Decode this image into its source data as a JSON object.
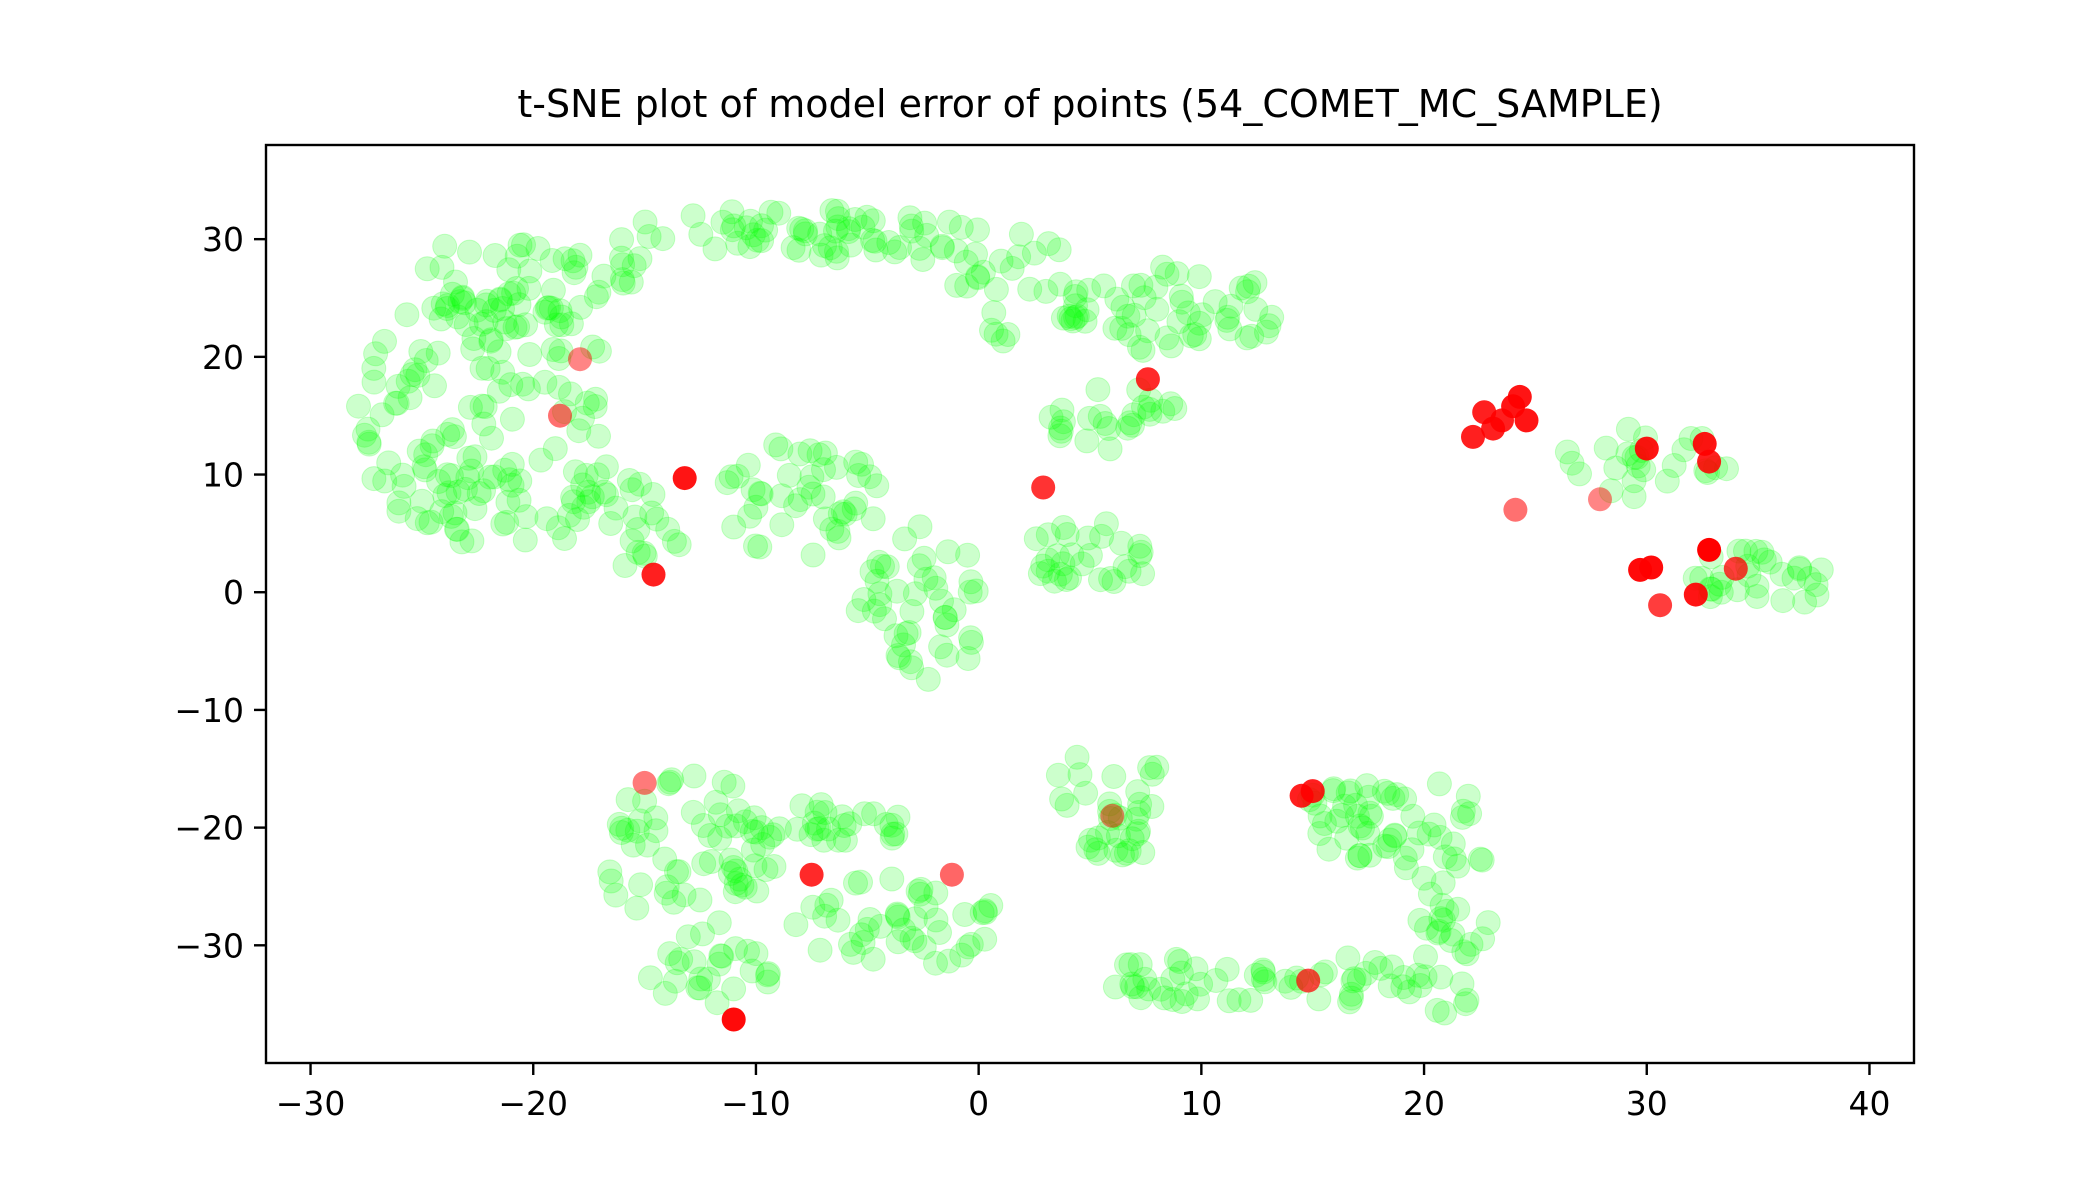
{
  "chart_data": {
    "type": "scatter",
    "title": "t-SNE plot of model error of points (54_COMET_MC_SAMPLE)",
    "xlabel": "",
    "ylabel": "",
    "xlim": [
      -32,
      42
    ],
    "ylim": [
      -40,
      38
    ],
    "xticks": [
      -30,
      -20,
      -10,
      0,
      10,
      20,
      30,
      40
    ],
    "yticks": [
      -30,
      -20,
      -10,
      0,
      10,
      20,
      30
    ],
    "xtick_labels": [
      "−30",
      "−20",
      "−10",
      "0",
      "10",
      "20",
      "30",
      "40"
    ],
    "ytick_labels": [
      "−30",
      "−20",
      "−10",
      "0",
      "10",
      "20",
      "30"
    ],
    "grid": false,
    "legend": "none",
    "colors": {
      "low_error": "#00ff00",
      "high_error": "#ff0000"
    },
    "low_error_clusters": [
      {
        "cx": -22,
        "cy": 15,
        "rx": 6,
        "ry": 11,
        "n": 140
      },
      {
        "cx": -20,
        "cy": 27,
        "rx": 5,
        "ry": 5,
        "n": 50
      },
      {
        "cx": -16,
        "cy": 6,
        "rx": 3,
        "ry": 4,
        "n": 30
      },
      {
        "cx": -10,
        "cy": 31,
        "rx": 6,
        "ry": 2,
        "n": 30
      },
      {
        "cx": -4,
        "cy": 30,
        "rx": 5,
        "ry": 2,
        "n": 35
      },
      {
        "cx": 2,
        "cy": 26,
        "rx": 3,
        "ry": 5,
        "n": 30
      },
      {
        "cx": 9,
        "cy": 24,
        "rx": 5,
        "ry": 4,
        "n": 50
      },
      {
        "cx": 6,
        "cy": 15,
        "rx": 3,
        "ry": 3,
        "n": 25
      },
      {
        "cx": -8,
        "cy": 8,
        "rx": 4,
        "ry": 5,
        "n": 45
      },
      {
        "cx": -3,
        "cy": 1,
        "rx": 3,
        "ry": 5,
        "n": 30
      },
      {
        "cx": -2,
        "cy": -5,
        "rx": 2,
        "ry": 3,
        "n": 15
      },
      {
        "cx": 5,
        "cy": 3,
        "rx": 3,
        "ry": 3,
        "n": 30
      },
      {
        "cx": -13,
        "cy": -22,
        "rx": 4,
        "ry": 7,
        "n": 60
      },
      {
        "cx": -7,
        "cy": -20,
        "rx": 4,
        "ry": 2,
        "n": 30
      },
      {
        "cx": -4,
        "cy": -28,
        "rx": 5,
        "ry": 4,
        "n": 45
      },
      {
        "cx": -12,
        "cy": -32,
        "rx": 3,
        "ry": 3,
        "n": 25
      },
      {
        "cx": 6,
        "cy": -18,
        "rx": 3,
        "ry": 5,
        "n": 35
      },
      {
        "cx": 10,
        "cy": -33,
        "rx": 5,
        "ry": 2,
        "n": 35
      },
      {
        "cx": 17,
        "cy": -20,
        "rx": 3,
        "ry": 4,
        "n": 40
      },
      {
        "cx": 21,
        "cy": -26,
        "rx": 2,
        "ry": 10,
        "n": 45
      },
      {
        "cx": 17,
        "cy": -33,
        "rx": 3,
        "ry": 2,
        "n": 20
      },
      {
        "cx": 30,
        "cy": 11,
        "rx": 4,
        "ry": 3,
        "n": 25
      },
      {
        "cx": 35,
        "cy": 1,
        "rx": 3,
        "ry": 3,
        "n": 30
      }
    ],
    "high_error_points": [
      {
        "x": -18.8,
        "y": 15,
        "err": 0.45
      },
      {
        "x": -17.9,
        "y": 19.8,
        "err": 0.35
      },
      {
        "x": -13.2,
        "y": 9.7,
        "err": 0.9
      },
      {
        "x": -14.6,
        "y": 1.5,
        "err": 0.85
      },
      {
        "x": 2.9,
        "y": 8.9,
        "err": 0.75
      },
      {
        "x": 7.6,
        "y": 18.1,
        "err": 0.8
      },
      {
        "x": 24.1,
        "y": 7.0,
        "err": 0.45
      },
      {
        "x": 22.2,
        "y": 13.2,
        "err": 0.85
      },
      {
        "x": 22.7,
        "y": 15.3,
        "err": 0.85
      },
      {
        "x": 23.1,
        "y": 13.9,
        "err": 0.85
      },
      {
        "x": 23.5,
        "y": 14.6,
        "err": 0.85
      },
      {
        "x": 24.0,
        "y": 15.8,
        "err": 0.9
      },
      {
        "x": 24.3,
        "y": 16.6,
        "err": 0.9
      },
      {
        "x": 24.6,
        "y": 14.6,
        "err": 0.9
      },
      {
        "x": 30.0,
        "y": 12.2,
        "err": 0.9
      },
      {
        "x": 32.6,
        "y": 12.6,
        "err": 0.9
      },
      {
        "x": 32.8,
        "y": 11.1,
        "err": 0.85
      },
      {
        "x": 27.9,
        "y": 7.9,
        "err": 0.35
      },
      {
        "x": 29.7,
        "y": 1.9,
        "err": 0.95
      },
      {
        "x": 30.2,
        "y": 2.1,
        "err": 0.95
      },
      {
        "x": 32.8,
        "y": 3.6,
        "err": 1.0
      },
      {
        "x": 30.6,
        "y": -1.1,
        "err": 0.7
      },
      {
        "x": 32.2,
        "y": -0.2,
        "err": 0.9
      },
      {
        "x": 34.0,
        "y": 2.0,
        "err": 0.7
      },
      {
        "x": -15.0,
        "y": -16.2,
        "err": 0.4
      },
      {
        "x": -7.5,
        "y": -24.0,
        "err": 0.8
      },
      {
        "x": -1.2,
        "y": -24.0,
        "err": 0.5
      },
      {
        "x": 6.0,
        "y": -19.0,
        "err": 0.35
      },
      {
        "x": 14.5,
        "y": -17.3,
        "err": 0.85
      },
      {
        "x": 15.0,
        "y": -16.9,
        "err": 0.85
      },
      {
        "x": 14.8,
        "y": -33.0,
        "err": 0.65
      },
      {
        "x": -11.0,
        "y": -36.3,
        "err": 0.95
      }
    ]
  }
}
